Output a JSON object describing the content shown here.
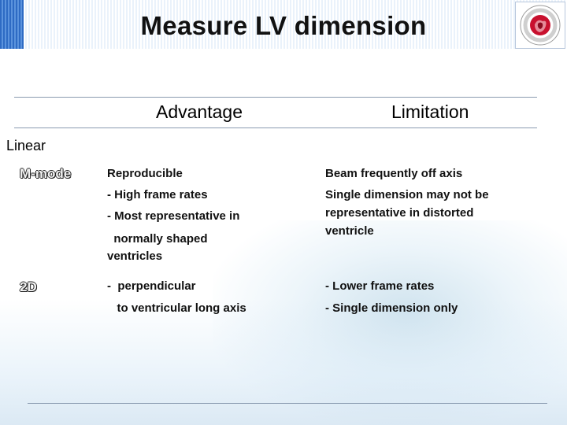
{
  "slide": {
    "title": "Measure LV dimension"
  },
  "table": {
    "column_headers": [
      "Advantage",
      "Limitation"
    ],
    "section_label": "Linear",
    "rows": [
      {
        "label": "M-mode",
        "advantage": [
          "Reproducible",
          "- High frame rates",
          "- Most representative in",
          "  normally shaped",
          "ventricles"
        ],
        "limitation": [
          "Beam frequently off axis",
          "Single dimension may not be",
          "representative in distorted",
          "ventricle"
        ]
      },
      {
        "label": "2D",
        "advantage": [
          "-  perpendicular",
          "   to ventricular long axis"
        ],
        "limitation": [
          "- Lower frame rates",
          "- Single dimension only"
        ]
      }
    ]
  },
  "colors": {
    "header_stripe": "#2e6bc4",
    "logo_red": "#c8102e",
    "rule_lines": "#8a9bb0"
  },
  "icons": {
    "logo": "society-seal-icon"
  }
}
